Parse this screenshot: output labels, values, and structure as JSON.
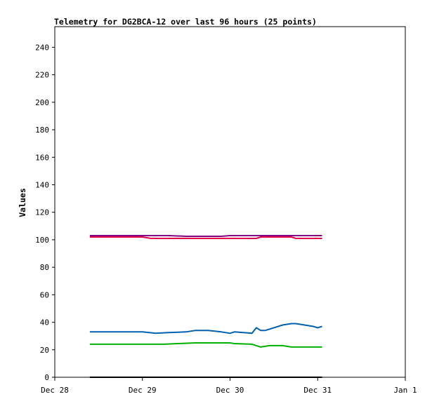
{
  "chart_data": {
    "type": "line",
    "title": "Telemetry for DG2BCA-12 over last 96 hours (25 points)",
    "xlabel": "",
    "ylabel": "Values",
    "xlim": [
      "Dec 28",
      "Jan 1"
    ],
    "ylim": [
      0,
      255
    ],
    "yticks": [
      0,
      20,
      40,
      60,
      80,
      100,
      120,
      140,
      160,
      180,
      200,
      220,
      240
    ],
    "xticks": [
      "Dec 28",
      "Dec 29",
      "Dec 30",
      "Dec 31",
      "Jan 1"
    ],
    "x_unit": "days since Dec 28 00:00",
    "grid": false,
    "legend": "none",
    "series": [
      {
        "color": "#800080",
        "x": [
          0.4,
          1.0,
          1.3,
          1.5,
          1.9,
          2.0,
          2.4,
          2.7,
          3.0,
          3.05
        ],
        "y": [
          103,
          103,
          103,
          102.5,
          102.5,
          103,
          103,
          103,
          103,
          103
        ]
      },
      {
        "color": "#e0004a",
        "x": [
          0.4,
          1.0,
          1.1,
          1.5,
          1.9,
          2.0,
          2.3,
          2.35,
          2.7,
          2.75,
          3.05
        ],
        "y": [
          102,
          102,
          101,
          101,
          101,
          101,
          101,
          102,
          102,
          101,
          101
        ]
      },
      {
        "color": "#0060b0",
        "x": [
          0.4,
          0.75,
          1.0,
          1.15,
          1.3,
          1.5,
          1.6,
          1.75,
          1.9,
          2.0,
          2.05,
          2.15,
          2.25,
          2.3,
          2.35,
          2.4,
          2.45,
          2.6,
          2.7,
          2.75,
          2.85,
          2.95,
          3.0,
          3.05
        ],
        "y": [
          33,
          33,
          33,
          32,
          32.5,
          33,
          34,
          34,
          33,
          32,
          33,
          32.5,
          32,
          36,
          34,
          34,
          35,
          38,
          39,
          39,
          38,
          37,
          36,
          37
        ]
      },
      {
        "color": "#00b000",
        "x": [
          0.4,
          0.75,
          1.0,
          1.25,
          1.4,
          1.6,
          1.8,
          2.0,
          2.05,
          2.25,
          2.3,
          2.35,
          2.45,
          2.6,
          2.7,
          3.0,
          3.05
        ],
        "y": [
          24,
          24,
          24,
          24,
          24.5,
          25,
          25,
          25,
          24.5,
          24,
          23,
          22,
          23,
          23,
          22,
          22,
          22
        ]
      },
      {
        "color": "#000000",
        "x": [
          0.4,
          3.05
        ],
        "y": [
          0,
          0
        ]
      }
    ]
  }
}
